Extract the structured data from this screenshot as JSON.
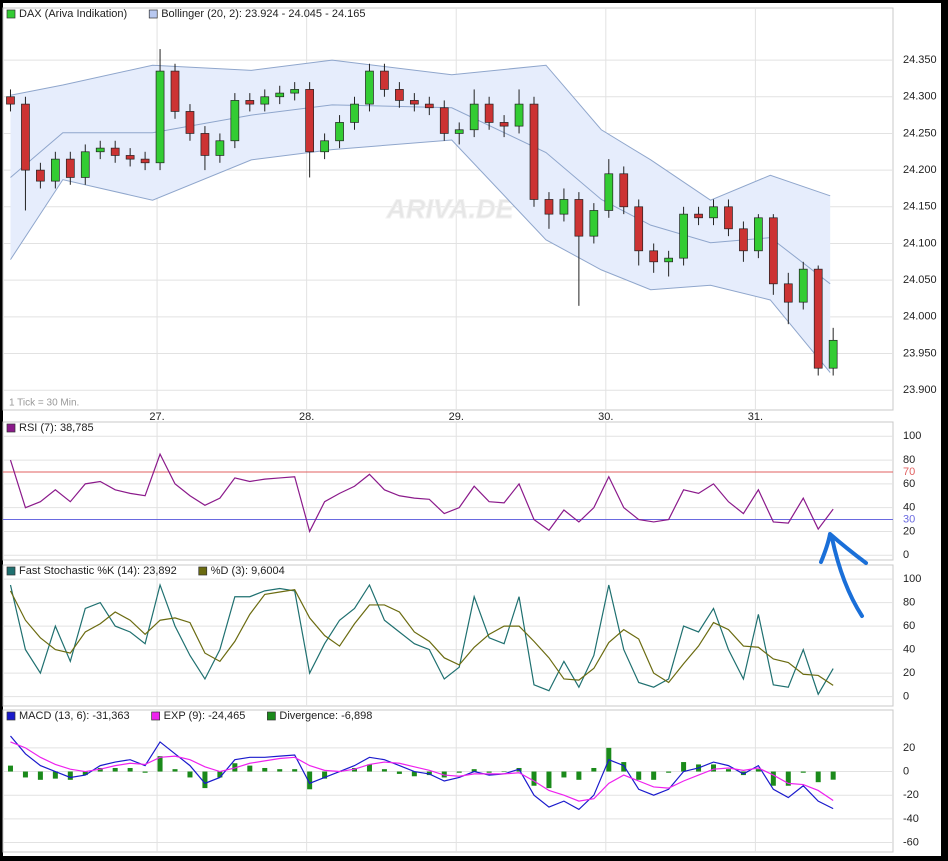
{
  "chart_data": [
    {
      "type": "candlestick",
      "note": "1 Tick = 30 Min.",
      "watermark": "ARIVA.DE",
      "xlim": [
        25.97,
        31.92
      ],
      "xticks": [
        {
          "value": 27,
          "label": "27."
        },
        {
          "value": 28,
          "label": "28."
        },
        {
          "value": 29,
          "label": "29."
        },
        {
          "value": 30,
          "label": "30."
        },
        {
          "value": 31,
          "label": "31."
        }
      ],
      "ylim": [
        23873,
        24421
      ],
      "yticks": [
        {
          "value": 23900,
          "label": "23.900"
        },
        {
          "value": 23950,
          "label": "23.950"
        },
        {
          "value": 24000,
          "label": "24.000"
        },
        {
          "value": 24050,
          "label": "24.050"
        },
        {
          "value": 24100,
          "label": "24.100"
        },
        {
          "value": 24150,
          "label": "24.150"
        },
        {
          "value": 24200,
          "label": "24.200"
        },
        {
          "value": 24250,
          "label": "24.250"
        },
        {
          "value": 24300,
          "label": "24.300"
        },
        {
          "value": 24350,
          "label": "24.350"
        }
      ],
      "grid": true,
      "x": [
        26.02,
        26.12,
        26.22,
        26.32,
        26.42,
        26.52,
        26.62,
        26.72,
        26.82,
        26.92,
        27.02,
        27.12,
        27.22,
        27.32,
        27.42,
        27.52,
        27.62,
        27.72,
        27.82,
        27.92,
        28.02,
        28.12,
        28.22,
        28.32,
        28.42,
        28.52,
        28.62,
        28.72,
        28.82,
        28.92,
        29.02,
        29.12,
        29.22,
        29.32,
        29.42,
        29.52,
        29.62,
        29.72,
        29.82,
        29.92,
        30.02,
        30.12,
        30.22,
        30.32,
        30.42,
        30.52,
        30.62,
        30.72,
        30.82,
        30.92,
        31.02,
        31.12,
        31.22,
        31.32,
        31.42,
        31.52
      ],
      "series": [
        {
          "name": "DAX (Ariva Indikation)",
          "color": "#33cc33",
          "down_color": "#cc3333",
          "open": [
            24300,
            24290,
            24200,
            24185,
            24215,
            24190,
            24225,
            24230,
            24220,
            24215,
            24210,
            24335,
            24280,
            24250,
            24220,
            24240,
            24295,
            24290,
            24300,
            24305,
            24310,
            24225,
            24240,
            24265,
            24290,
            24335,
            24310,
            24295,
            24290,
            24285,
            24250,
            24255,
            24290,
            24265,
            24260,
            24290,
            24160,
            24140,
            24160,
            24110,
            24145,
            24195,
            24150,
            24090,
            24075,
            24080,
            24140,
            24135,
            24150,
            24120,
            24090,
            24135,
            24045,
            24020,
            24065,
            23930
          ],
          "high": [
            24310,
            24300,
            24210,
            24225,
            24225,
            24235,
            24240,
            24240,
            24230,
            24225,
            24365,
            24345,
            24290,
            24260,
            24250,
            24305,
            24305,
            24310,
            24315,
            24320,
            24320,
            24250,
            24275,
            24300,
            24345,
            24345,
            24320,
            24305,
            24300,
            24295,
            24265,
            24310,
            24300,
            24275,
            24310,
            24300,
            24170,
            24175,
            24170,
            24155,
            24215,
            24205,
            24160,
            24100,
            24090,
            24150,
            24150,
            24160,
            24160,
            24130,
            24140,
            24140,
            24060,
            24075,
            24070,
            23985
          ],
          "low": [
            24280,
            24145,
            24175,
            24175,
            24180,
            24180,
            24215,
            24210,
            24205,
            24200,
            24200,
            24270,
            24240,
            24200,
            24210,
            24230,
            24280,
            24280,
            24290,
            24295,
            24190,
            24215,
            24230,
            24255,
            24280,
            24300,
            24285,
            24280,
            24275,
            24240,
            24235,
            24245,
            24255,
            24245,
            24250,
            24150,
            24120,
            24130,
            24015,
            24100,
            24135,
            24140,
            24070,
            24060,
            24055,
            24070,
            24125,
            24125,
            24110,
            24075,
            24080,
            24030,
            23990,
            24010,
            23920,
            23920
          ],
          "close": [
            24290,
            24200,
            24185,
            24215,
            24190,
            24225,
            24230,
            24220,
            24215,
            24210,
            24335,
            24280,
            24250,
            24220,
            24240,
            24295,
            24290,
            24300,
            24305,
            24310,
            24225,
            24240,
            24265,
            24290,
            24335,
            24310,
            24295,
            24290,
            24285,
            24250,
            24255,
            24290,
            24265,
            24260,
            24290,
            24160,
            24140,
            24160,
            24110,
            24145,
            24195,
            24150,
            24090,
            24075,
            24080,
            24140,
            24135,
            24150,
            24120,
            24090,
            24135,
            24045,
            24020,
            24065,
            23930,
            23968
          ]
        }
      ],
      "bollinger": {
        "name": "Bollinger (20, 2): 23.924 - 24.045 - 24.165",
        "color": "#b8c8f0",
        "line_color": "#8fa6cc",
        "fill": "#e6edfc",
        "x": [
          26.02,
          26.37,
          26.97,
          27.63,
          28.17,
          28.97,
          29.6,
          29.97,
          30.3,
          30.7,
          31.1,
          31.5
        ],
        "upper": [
          24302,
          24316,
          24343,
          24336,
          24350,
          24330,
          24343,
          24255,
          24214,
          24159,
          24193,
          24165
        ],
        "middle": [
          24190,
          24251,
          24251,
          24275,
          24289,
          24285,
          24224,
          24160,
          24125,
          24101,
          24108,
          24045
        ],
        "lower": [
          24078,
          24187,
          24159,
          24214,
          24228,
          24241,
          24105,
          24064,
          24037,
          24043,
          24023,
          23924
        ]
      }
    },
    {
      "type": "line",
      "ylim": [
        -4,
        112
      ],
      "yticks": [
        0,
        20,
        40,
        60,
        80,
        100
      ],
      "grid": true,
      "hlines": [
        {
          "value": 70,
          "color": "#e06060"
        },
        {
          "value": 30,
          "color": "#6a6ae0"
        }
      ],
      "series": [
        {
          "name": "RSI (7): 38,785",
          "color": "#8b1a8b",
          "values": [
            80,
            40,
            45,
            55,
            45,
            60,
            62,
            55,
            52,
            50,
            85,
            60,
            50,
            42,
            48,
            65,
            62,
            64,
            65,
            66,
            20,
            45,
            52,
            58,
            68,
            55,
            50,
            48,
            47,
            35,
            40,
            58,
            45,
            44,
            60,
            30,
            21,
            38,
            28,
            40,
            66,
            40,
            30,
            28,
            30,
            55,
            52,
            60,
            45,
            35,
            55,
            28,
            27,
            48,
            22,
            38.785
          ]
        }
      ]
    },
    {
      "type": "line",
      "ylim": [
        -8,
        112
      ],
      "yticks": [
        0,
        20,
        40,
        60,
        80,
        100
      ],
      "grid": true,
      "series": [
        {
          "name": "Fast Stochastic %K (14): 23,892",
          "color": "#1f7070",
          "values": [
            95,
            40,
            20,
            60,
            30,
            75,
            80,
            60,
            55,
            45,
            95,
            60,
            35,
            15,
            40,
            85,
            85,
            90,
            92,
            90,
            20,
            45,
            65,
            75,
            95,
            65,
            55,
            45,
            40,
            15,
            25,
            85,
            50,
            45,
            85,
            10,
            5,
            30,
            8,
            35,
            95,
            40,
            12,
            8,
            15,
            60,
            55,
            75,
            40,
            15,
            70,
            10,
            8,
            40,
            2,
            23.892
          ]
        },
        {
          "name": "%D (3): 9,6004",
          "color": "#6b6b10",
          "values": [
            90,
            65,
            50,
            40,
            37,
            55,
            62,
            72,
            65,
            53,
            65,
            67,
            63,
            37,
            30,
            47,
            70,
            87,
            89,
            91,
            67,
            52,
            43,
            62,
            78,
            78,
            72,
            55,
            47,
            33,
            27,
            42,
            53,
            60,
            60,
            47,
            33,
            15,
            14,
            24,
            46,
            57,
            49,
            20,
            12,
            28,
            43,
            63,
            57,
            43,
            42,
            32,
            29,
            19,
            18,
            9.6004
          ]
        }
      ]
    },
    {
      "type": "line",
      "ylim": [
        -68,
        52
      ],
      "yticks": [
        -60,
        -40,
        -20,
        0,
        20
      ],
      "grid": true,
      "series": [
        {
          "name": "MACD (13, 6): -31,363",
          "color": "#1a1acc",
          "values": [
            30,
            15,
            5,
            0,
            -5,
            -3,
            5,
            8,
            10,
            5,
            25,
            15,
            5,
            -10,
            -5,
            10,
            12,
            12,
            13,
            14,
            -10,
            -5,
            0,
            5,
            12,
            10,
            5,
            0,
            -2,
            -8,
            -5,
            0,
            -3,
            -2,
            2,
            -20,
            -30,
            -25,
            -32,
            -20,
            10,
            5,
            -15,
            -20,
            -15,
            0,
            3,
            8,
            5,
            -2,
            5,
            -15,
            -22,
            -12,
            -25,
            -31.363
          ]
        },
        {
          "name": "EXP (9): -24,465",
          "color": "#ee22ee",
          "values": [
            25,
            20,
            12,
            6,
            2,
            0,
            2,
            5,
            7,
            6,
            12,
            13,
            10,
            4,
            0,
            3,
            7,
            9,
            11,
            12,
            5,
            1,
            0,
            2,
            6,
            8,
            7,
            4,
            1,
            -3,
            -4,
            -2,
            -2,
            -2,
            -1,
            -8,
            -16,
            -20,
            -25,
            -23,
            -10,
            -3,
            -8,
            -13,
            -14,
            -8,
            -3,
            2,
            3,
            1,
            3,
            -3,
            -10,
            -11,
            -16,
            -24.465
          ]
        },
        {
          "name": "Divergence: -6,898",
          "color": "#1a8a1a",
          "type": "bar",
          "values": [
            5,
            -5,
            -7,
            -6,
            -7,
            -3,
            3,
            3,
            3,
            -1,
            13,
            2,
            -5,
            -14,
            -5,
            7,
            5,
            3,
            2,
            2,
            -15,
            -6,
            0,
            3,
            6,
            2,
            -2,
            -4,
            -3,
            -5,
            -1,
            2,
            -1,
            0,
            3,
            -12,
            -14,
            -5,
            -7,
            3,
            20,
            8,
            -7,
            -7,
            -1,
            8,
            6,
            6,
            2,
            -3,
            2,
            -12,
            -12,
            -1,
            -9,
            -6.898
          ]
        }
      ]
    }
  ]
}
